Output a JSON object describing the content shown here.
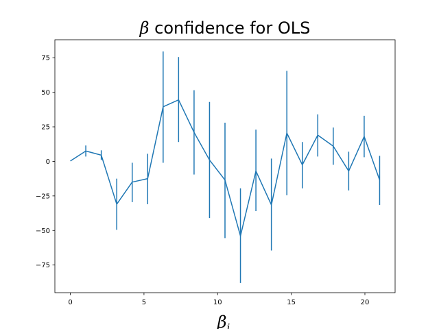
{
  "chart_data": {
    "type": "line",
    "title": "β confidence for OLS",
    "title_symbol": "β",
    "title_rest": " confidence for OLS",
    "xlabel": "β",
    "xlabel_base": "β",
    "xlabel_sub": "i",
    "ylabel": "",
    "xlim": [
      -1.05,
      22.05
    ],
    "ylim": [
      -95,
      88
    ],
    "xticks": [
      0,
      5,
      10,
      15,
      20
    ],
    "yticks": [
      -75,
      -50,
      -25,
      0,
      25,
      50,
      75
    ],
    "grid": false,
    "line_color": "#1f77b4",
    "series": [
      {
        "x": [
          0,
          1.05,
          2.1,
          3.15,
          4.2,
          5.25,
          6.3,
          7.35,
          8.4,
          9.45,
          10.5,
          11.55,
          12.6,
          13.65,
          14.7,
          15.75,
          16.8,
          17.85,
          18.9,
          19.95,
          21.0
        ],
        "values": [
          0.3,
          7.5,
          4.5,
          -31,
          -15,
          -12.5,
          39.5,
          44.5,
          21,
          1,
          -13.5,
          -54,
          -7,
          -31.5,
          20.5,
          -2.5,
          19,
          11,
          -7,
          18,
          -13.5
        ],
        "lower": [
          null,
          3.5,
          1,
          -49.5,
          -29.5,
          -31,
          -1,
          14,
          -9.5,
          -41,
          -55.5,
          -88,
          -36,
          -64.5,
          -24.5,
          -19.5,
          3.5,
          -2.5,
          -21,
          3,
          -31.5
        ],
        "upper": [
          null,
          11.5,
          8,
          -12.5,
          -1,
          5.5,
          79.5,
          75.5,
          51.5,
          43,
          28,
          -19.5,
          23,
          2,
          65.5,
          14,
          34,
          24.5,
          7,
          33,
          4
        ]
      }
    ]
  }
}
